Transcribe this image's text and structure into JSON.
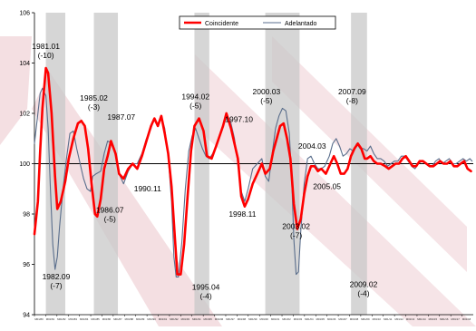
{
  "chart_data": {
    "type": "line",
    "title": "",
    "xlabel": "",
    "ylabel": "",
    "x_range": [
      1980.0,
      2018.4
    ],
    "ylim": [
      94,
      106
    ],
    "y_ticks": [
      94,
      96,
      98,
      100,
      102,
      104,
      106
    ],
    "reference_line": 100,
    "legend_position": "top-center",
    "x_tick_labels": [
      "M01/80",
      "M01/81",
      "M01/82",
      "M01/83",
      "M01/84",
      "M01/85",
      "M01/86",
      "M01/87",
      "M01/88",
      "M01/89",
      "M01/90",
      "M01/91",
      "M01/92",
      "M01/93",
      "M01/94",
      "M01/95",
      "M01/96",
      "M01/97",
      "M01/98",
      "M01/99",
      "M01/00",
      "M01/01",
      "M01/02",
      "M01/03",
      "M01/04",
      "M01/05",
      "M01/06",
      "M01/07",
      "M01/08",
      "M01/09",
      "M01/10",
      "M01/11",
      "M01/12",
      "M01/13",
      "M01/14",
      "M01/15",
      "M01/16",
      "M01/17",
      "M01/18"
    ],
    "recessions": [
      [
        1981.0,
        1982.7
      ],
      [
        1985.2,
        1987.3
      ],
      [
        1994.0,
        1995.3
      ],
      [
        2000.2,
        2003.2
      ],
      [
        2007.7,
        2009.1
      ]
    ],
    "series": [
      {
        "name": "Coincidente",
        "color": "#ff0000",
        "points": [
          [
            1980.0,
            97.2
          ],
          [
            1980.3,
            98.5
          ],
          [
            1980.5,
            100.5
          ],
          [
            1980.7,
            102.2
          ],
          [
            1981.0,
            103.8
          ],
          [
            1981.2,
            103.6
          ],
          [
            1981.5,
            102.0
          ],
          [
            1981.8,
            99.5
          ],
          [
            1982.0,
            98.2
          ],
          [
            1982.3,
            98.5
          ],
          [
            1982.7,
            99.3
          ],
          [
            1983.0,
            100.2
          ],
          [
            1983.4,
            101.0
          ],
          [
            1983.8,
            101.6
          ],
          [
            1984.1,
            101.7
          ],
          [
            1984.4,
            101.5
          ],
          [
            1984.7,
            100.6
          ],
          [
            1985.0,
            99.2
          ],
          [
            1985.3,
            98.0
          ],
          [
            1985.5,
            97.9
          ],
          [
            1985.8,
            98.6
          ],
          [
            1986.1,
            99.8
          ],
          [
            1986.4,
            100.3
          ],
          [
            1986.7,
            100.9
          ],
          [
            1987.1,
            100.4
          ],
          [
            1987.4,
            99.6
          ],
          [
            1987.8,
            99.4
          ],
          [
            1988.2,
            99.8
          ],
          [
            1988.6,
            100.0
          ],
          [
            1989.0,
            99.8
          ],
          [
            1989.4,
            100.3
          ],
          [
            1989.8,
            100.9
          ],
          [
            1990.2,
            101.5
          ],
          [
            1990.5,
            101.8
          ],
          [
            1990.8,
            101.5
          ],
          [
            1991.1,
            101.9
          ],
          [
            1991.4,
            101.2
          ],
          [
            1991.7,
            100.4
          ],
          [
            1992.0,
            99.1
          ],
          [
            1992.3,
            97.0
          ],
          [
            1992.5,
            95.6
          ],
          [
            1992.8,
            95.6
          ],
          [
            1993.1,
            96.8
          ],
          [
            1993.4,
            98.7
          ],
          [
            1993.7,
            100.5
          ],
          [
            1994.0,
            101.5
          ],
          [
            1994.4,
            101.8
          ],
          [
            1994.8,
            101.3
          ],
          [
            1995.1,
            100.3
          ],
          [
            1995.5,
            100.2
          ],
          [
            1995.9,
            100.7
          ],
          [
            1996.2,
            101.1
          ],
          [
            1996.5,
            101.5
          ],
          [
            1996.8,
            102.0
          ],
          [
            1997.2,
            101.4
          ],
          [
            1997.5,
            100.8
          ],
          [
            1997.8,
            100.2
          ],
          [
            1998.1,
            98.7
          ],
          [
            1998.4,
            98.3
          ],
          [
            1998.7,
            98.6
          ],
          [
            1999.1,
            99.2
          ],
          [
            1999.5,
            99.6
          ],
          [
            1999.9,
            100.0
          ],
          [
            2000.2,
            99.6
          ],
          [
            2000.6,
            99.8
          ],
          [
            2000.9,
            100.5
          ],
          [
            2001.2,
            101.0
          ],
          [
            2001.5,
            101.5
          ],
          [
            2001.8,
            101.6
          ],
          [
            2002.1,
            101.0
          ],
          [
            2002.4,
            100.2
          ],
          [
            2002.7,
            98.4
          ],
          [
            2003.0,
            97.4
          ],
          [
            2003.3,
            97.8
          ],
          [
            2003.6,
            98.8
          ],
          [
            2003.9,
            99.5
          ],
          [
            2004.2,
            99.9
          ],
          [
            2004.5,
            99.9
          ],
          [
            2004.8,
            99.7
          ],
          [
            2005.1,
            99.8
          ],
          [
            2005.5,
            99.6
          ],
          [
            2005.9,
            100.0
          ],
          [
            2006.2,
            100.3
          ],
          [
            2006.5,
            100.0
          ],
          [
            2006.8,
            99.6
          ],
          [
            2007.1,
            99.6
          ],
          [
            2007.4,
            99.8
          ],
          [
            2007.7,
            100.3
          ],
          [
            2008.0,
            100.6
          ],
          [
            2008.3,
            100.8
          ],
          [
            2008.6,
            100.6
          ],
          [
            2008.9,
            100.2
          ],
          [
            2009.1,
            100.2
          ],
          [
            2009.4,
            100.3
          ],
          [
            2009.7,
            100.1
          ],
          [
            2010.0,
            100.0
          ],
          [
            2010.3,
            100.0
          ],
          [
            2010.7,
            99.9
          ],
          [
            2011.0,
            99.8
          ],
          [
            2011.3,
            99.9
          ],
          [
            2011.6,
            100.0
          ],
          [
            2011.9,
            100.0
          ],
          [
            2012.2,
            100.2
          ],
          [
            2012.5,
            100.3
          ],
          [
            2012.8,
            100.1
          ],
          [
            2013.1,
            99.9
          ],
          [
            2013.4,
            99.9
          ],
          [
            2013.7,
            100.1
          ],
          [
            2014.0,
            100.1
          ],
          [
            2014.3,
            100.0
          ],
          [
            2014.6,
            99.9
          ],
          [
            2014.9,
            99.9
          ],
          [
            2015.2,
            100.0
          ],
          [
            2015.5,
            100.1
          ],
          [
            2015.8,
            100.0
          ],
          [
            2016.1,
            100.0
          ],
          [
            2016.4,
            100.1
          ],
          [
            2016.7,
            99.9
          ],
          [
            2017.0,
            99.9
          ],
          [
            2017.3,
            100.0
          ],
          [
            2017.6,
            100.1
          ],
          [
            2017.9,
            99.8
          ],
          [
            2018.2,
            99.7
          ]
        ]
      },
      {
        "name": "Adelantado",
        "color": "#5a6e8c",
        "points": [
          [
            1980.0,
            100.8
          ],
          [
            1980.3,
            102.0
          ],
          [
            1980.5,
            102.8
          ],
          [
            1980.7,
            103.0
          ],
          [
            1981.0,
            102.7
          ],
          [
            1981.2,
            101.4
          ],
          [
            1981.4,
            99.0
          ],
          [
            1981.6,
            96.8
          ],
          [
            1981.8,
            95.8
          ],
          [
            1982.0,
            96.3
          ],
          [
            1982.2,
            97.5
          ],
          [
            1982.5,
            99.0
          ],
          [
            1982.8,
            100.2
          ],
          [
            1983.1,
            101.2
          ],
          [
            1983.4,
            101.3
          ],
          [
            1983.7,
            100.6
          ],
          [
            1984.0,
            100.0
          ],
          [
            1984.3,
            99.4
          ],
          [
            1984.6,
            99.0
          ],
          [
            1984.9,
            98.9
          ],
          [
            1985.1,
            99.5
          ],
          [
            1985.4,
            99.6
          ],
          [
            1985.8,
            99.7
          ],
          [
            1986.1,
            100.4
          ],
          [
            1986.4,
            100.9
          ],
          [
            1986.8,
            100.8
          ],
          [
            1987.1,
            100.3
          ],
          [
            1987.4,
            99.6
          ],
          [
            1987.8,
            99.2
          ],
          [
            1988.2,
            99.7
          ],
          [
            1988.6,
            100.0
          ],
          [
            1989.0,
            100.0
          ],
          [
            1989.4,
            100.4
          ],
          [
            1989.8,
            101.0
          ],
          [
            1990.2,
            101.4
          ],
          [
            1990.5,
            101.8
          ],
          [
            1990.8,
            101.5
          ],
          [
            1991.1,
            101.9
          ],
          [
            1991.4,
            101.4
          ],
          [
            1991.7,
            100.3
          ],
          [
            1992.0,
            98.5
          ],
          [
            1992.2,
            96.3
          ],
          [
            1992.4,
            95.5
          ],
          [
            1992.6,
            95.5
          ],
          [
            1992.9,
            96.9
          ],
          [
            1993.2,
            99.0
          ],
          [
            1993.5,
            100.5
          ],
          [
            1993.8,
            101.1
          ],
          [
            1994.1,
            101.4
          ],
          [
            1994.4,
            101.0
          ],
          [
            1994.7,
            100.6
          ],
          [
            1995.0,
            100.3
          ],
          [
            1995.3,
            100.2
          ],
          [
            1995.6,
            100.4
          ],
          [
            1995.9,
            100.7
          ],
          [
            1996.2,
            101.1
          ],
          [
            1996.6,
            101.6
          ],
          [
            1996.9,
            101.9
          ],
          [
            1997.2,
            101.6
          ],
          [
            1997.5,
            101.0
          ],
          [
            1997.8,
            100.0
          ],
          [
            1998.1,
            98.9
          ],
          [
            1998.4,
            98.5
          ],
          [
            1998.7,
            99.0
          ],
          [
            1999.1,
            99.8
          ],
          [
            1999.5,
            100.0
          ],
          [
            1999.9,
            100.2
          ],
          [
            2000.2,
            99.5
          ],
          [
            2000.5,
            99.3
          ],
          [
            2000.8,
            100.4
          ],
          [
            2001.1,
            101.4
          ],
          [
            2001.4,
            101.9
          ],
          [
            2001.7,
            102.2
          ],
          [
            2002.0,
            102.1
          ],
          [
            2002.3,
            101.2
          ],
          [
            2002.5,
            99.5
          ],
          [
            2002.7,
            97.0
          ],
          [
            2002.9,
            95.6
          ],
          [
            2003.1,
            95.7
          ],
          [
            2003.3,
            97.3
          ],
          [
            2003.6,
            99.2
          ],
          [
            2003.9,
            100.2
          ],
          [
            2004.2,
            100.3
          ],
          [
            2004.5,
            100.0
          ],
          [
            2004.8,
            99.8
          ],
          [
            2005.1,
            99.8
          ],
          [
            2005.4,
            99.9
          ],
          [
            2005.8,
            100.3
          ],
          [
            2006.1,
            100.8
          ],
          [
            2006.4,
            101.0
          ],
          [
            2006.7,
            100.7
          ],
          [
            2007.0,
            100.3
          ],
          [
            2007.3,
            100.4
          ],
          [
            2007.6,
            100.6
          ],
          [
            2007.9,
            100.5
          ],
          [
            2008.2,
            100.8
          ],
          [
            2008.5,
            100.6
          ],
          [
            2008.8,
            100.6
          ],
          [
            2009.1,
            100.5
          ],
          [
            2009.4,
            100.7
          ],
          [
            2009.7,
            100.4
          ],
          [
            2010.0,
            100.2
          ],
          [
            2010.3,
            100.2
          ],
          [
            2010.6,
            100.1
          ],
          [
            2010.9,
            99.9
          ],
          [
            2011.2,
            100.0
          ],
          [
            2011.5,
            100.1
          ],
          [
            2011.8,
            100.1
          ],
          [
            2012.1,
            100.3
          ],
          [
            2012.4,
            100.3
          ],
          [
            2012.7,
            100.1
          ],
          [
            2013.0,
            99.9
          ],
          [
            2013.3,
            99.8
          ],
          [
            2013.6,
            100.0
          ],
          [
            2013.9,
            100.1
          ],
          [
            2014.2,
            100.0
          ],
          [
            2014.5,
            99.9
          ],
          [
            2014.8,
            99.9
          ],
          [
            2015.1,
            100.1
          ],
          [
            2015.4,
            100.2
          ],
          [
            2015.7,
            100.0
          ],
          [
            2016.0,
            100.1
          ],
          [
            2016.3,
            100.2
          ],
          [
            2016.6,
            100.0
          ],
          [
            2016.9,
            100.0
          ],
          [
            2017.2,
            100.1
          ],
          [
            2017.5,
            100.2
          ],
          [
            2017.8,
            100.1
          ],
          [
            2018.1,
            100.2
          ],
          [
            2018.3,
            100.1
          ]
        ]
      }
    ],
    "annotations": [
      {
        "lines": [
          "1981.01",
          "(-10)"
        ],
        "x": 1981.0,
        "y": 104.55
      },
      {
        "lines": [
          "1985.02",
          "(-3)"
        ],
        "x": 1985.2,
        "y": 102.5
      },
      {
        "lines": [
          "1987.07"
        ],
        "x": 1987.6,
        "y": 101.75
      },
      {
        "lines": [
          "1994.02",
          "(-5)"
        ],
        "x": 1994.1,
        "y": 102.55
      },
      {
        "lines": [
          "1997.10"
        ],
        "x": 1997.9,
        "y": 101.65
      },
      {
        "lines": [
          "2000.03",
          "(-5)"
        ],
        "x": 2000.3,
        "y": 102.75
      },
      {
        "lines": [
          "2007.09",
          "(-8)"
        ],
        "x": 2007.8,
        "y": 102.75
      },
      {
        "lines": [
          "2004.03"
        ],
        "x": 2004.3,
        "y": 100.6
      },
      {
        "lines": [
          "1990.11"
        ],
        "x": 1989.9,
        "y": 98.9
      },
      {
        "lines": [
          "1986.07",
          "(-5)"
        ],
        "x": 1986.6,
        "y": 98.05
      },
      {
        "lines": [
          "2005.05"
        ],
        "x": 2005.6,
        "y": 99.0
      },
      {
        "lines": [
          "1998.11"
        ],
        "x": 1998.2,
        "y": 97.9
      },
      {
        "lines": [
          "2003.02",
          "(-7)"
        ],
        "x": 2002.9,
        "y": 97.4
      },
      {
        "lines": [
          "1982.09",
          "(-7)"
        ],
        "x": 1981.9,
        "y": 95.4
      },
      {
        "lines": [
          "1995.04",
          "(-4)"
        ],
        "x": 1995.0,
        "y": 95.0
      },
      {
        "lines": [
          "2009.02",
          "(-4)"
        ],
        "x": 2008.8,
        "y": 95.1
      }
    ]
  }
}
